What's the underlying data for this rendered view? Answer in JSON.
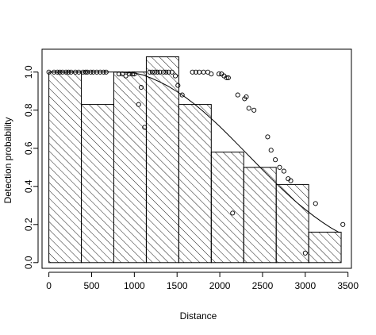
{
  "chart_data": {
    "type": "bar",
    "xlabel": "Distance",
    "ylabel": "Detection probability",
    "xlim": [
      -80,
      3540
    ],
    "ylim": [
      -0.03,
      1.12
    ],
    "x_ticks": [
      0,
      500,
      1000,
      1500,
      2000,
      2500,
      3000,
      3500
    ],
    "y_ticks": [
      0.0,
      0.2,
      0.4,
      0.6,
      0.8,
      1.0
    ],
    "bins": [
      {
        "x0": 0,
        "x1": 380,
        "value": 1.0
      },
      {
        "x0": 380,
        "x1": 760,
        "value": 0.83
      },
      {
        "x0": 760,
        "x1": 1140,
        "value": 1.0
      },
      {
        "x0": 1140,
        "x1": 1520,
        "value": 1.08
      },
      {
        "x0": 1520,
        "x1": 1900,
        "value": 0.83
      },
      {
        "x0": 1900,
        "x1": 2280,
        "value": 0.58
      },
      {
        "x0": 2280,
        "x1": 2660,
        "value": 0.5
      },
      {
        "x0": 2660,
        "x1": 3040,
        "value": 0.41
      },
      {
        "x0": 3040,
        "x1": 3420,
        "value": 0.16
      }
    ],
    "fitted_curve": {
      "x": [
        0,
        200,
        400,
        600,
        800,
        1000,
        1100,
        1200,
        1300,
        1400,
        1500,
        1600,
        1700,
        1800,
        1900,
        2000,
        2100,
        2200,
        2300,
        2400,
        2500,
        2600,
        2700,
        2800,
        2900,
        3000,
        3100,
        3200,
        3300,
        3400
      ],
      "y": [
        1.0,
        1.0,
        1.0,
        1.0,
        1.0,
        0.995,
        0.985,
        0.968,
        0.948,
        0.925,
        0.897,
        0.867,
        0.833,
        0.796,
        0.756,
        0.714,
        0.67,
        0.625,
        0.579,
        0.533,
        0.487,
        0.442,
        0.398,
        0.356,
        0.316,
        0.279,
        0.244,
        0.212,
        0.183,
        0.157
      ]
    },
    "points": {
      "x": [
        0,
        60,
        100,
        130,
        160,
        200,
        230,
        260,
        310,
        350,
        400,
        430,
        450,
        490,
        520,
        560,
        600,
        640,
        670,
        820,
        860,
        900,
        940,
        980,
        1000,
        1050,
        1080,
        1120,
        1180,
        1210,
        1240,
        1270,
        1300,
        1340,
        1370,
        1400,
        1440,
        1480,
        1510,
        1560,
        1680,
        1720,
        1760,
        1810,
        1860,
        1900,
        1990,
        2020,
        2050,
        2080,
        2100,
        2150,
        2210,
        2290,
        2310,
        2340,
        2400,
        2560,
        2600,
        2650,
        2700,
        2750,
        2800,
        2830,
        3000,
        3120,
        3440
      ],
      "y": [
        1.0,
        1.0,
        1.0,
        1.0,
        1.0,
        1.0,
        1.0,
        1.0,
        1.0,
        1.0,
        1.0,
        1.0,
        1.0,
        1.0,
        1.0,
        1.0,
        1.0,
        1.0,
        1.0,
        0.99,
        0.99,
        0.98,
        0.99,
        0.99,
        0.99,
        0.83,
        0.92,
        0.71,
        1.0,
        1.0,
        1.0,
        1.0,
        1.0,
        1.0,
        1.0,
        1.0,
        1.0,
        0.98,
        0.93,
        0.88,
        1.0,
        1.0,
        1.0,
        1.0,
        1.0,
        0.99,
        0.99,
        0.99,
        0.98,
        0.97,
        0.97,
        0.26,
        0.88,
        0.86,
        0.87,
        0.81,
        0.8,
        0.66,
        0.59,
        0.54,
        0.5,
        0.48,
        0.44,
        0.43,
        0.05,
        0.31,
        0.2
      ]
    }
  }
}
